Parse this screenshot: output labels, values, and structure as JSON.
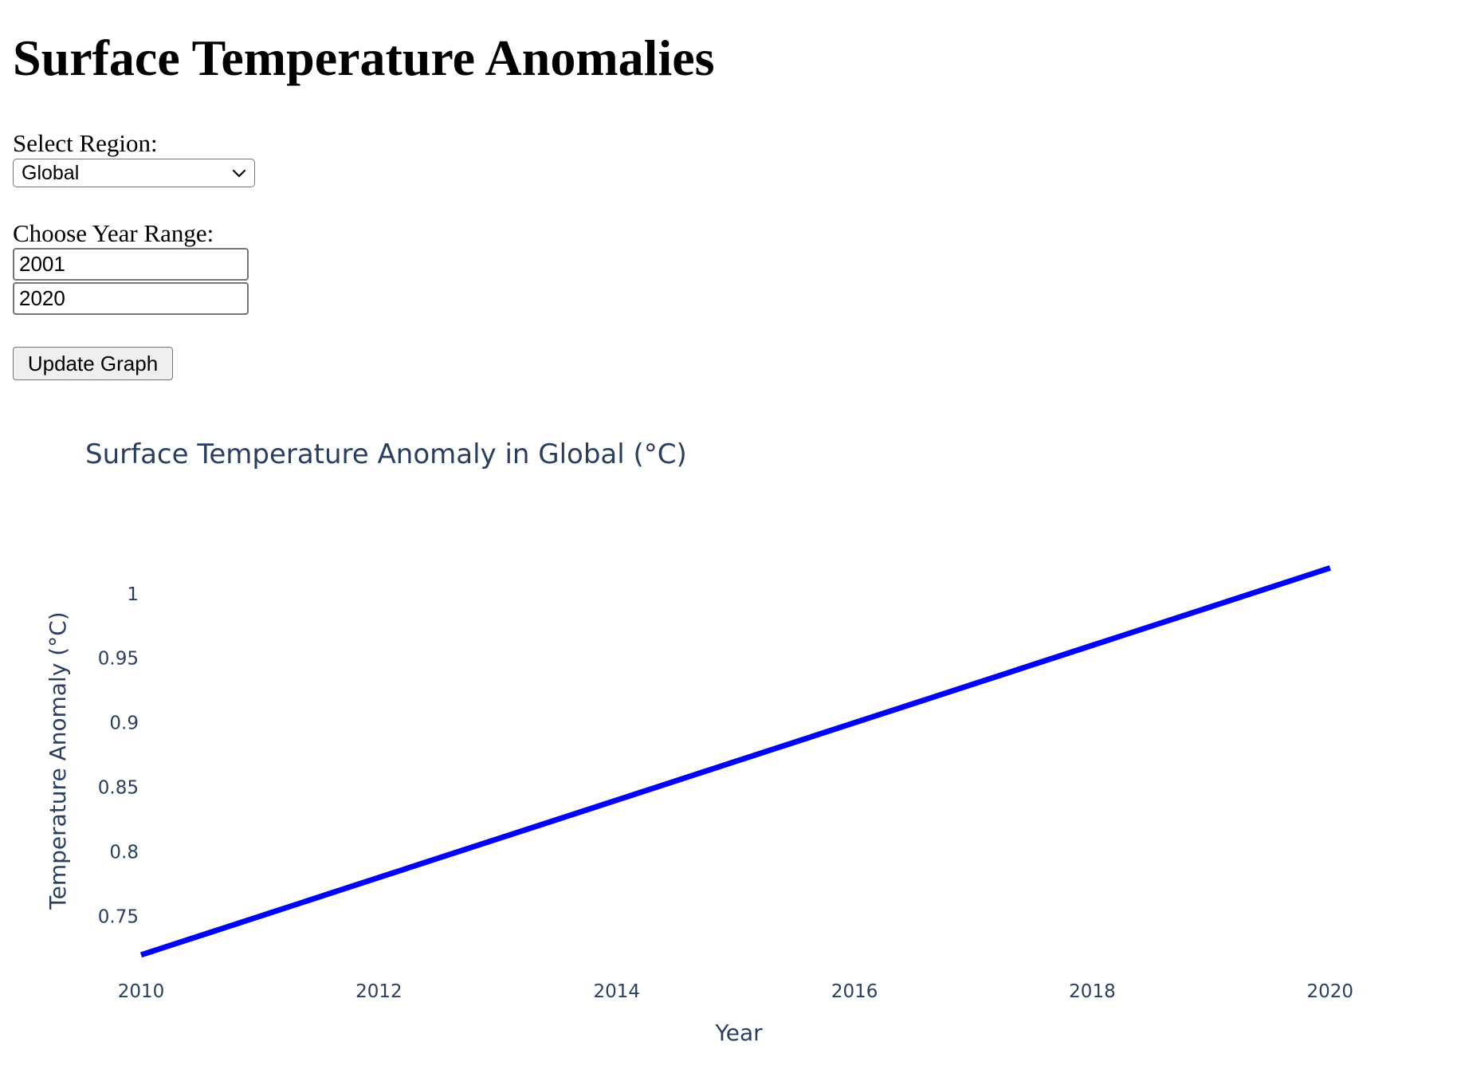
{
  "page": {
    "title": "Surface Temperature Anomalies"
  },
  "controls": {
    "region_label": "Select Region:",
    "region_selected": "Global",
    "year_range_label": "Choose Year Range:",
    "year_start": "2001",
    "year_end": "2020",
    "update_button_label": "Update Graph",
    "chevron_icon": "chevron-down-icon"
  },
  "chart_data": {
    "type": "line",
    "title": "Surface Temperature Anomaly in Global (°C)",
    "xlabel": "Year",
    "ylabel": "Temperature Anomaly (°C)",
    "x": [
      2010,
      2011,
      2012,
      2013,
      2014,
      2015,
      2016,
      2017,
      2018,
      2019,
      2020
    ],
    "series": [
      {
        "values": [
          0.72,
          0.75,
          0.78,
          0.81,
          0.84,
          0.87,
          0.9,
          0.93,
          0.96,
          0.99,
          1.02
        ],
        "color": "#0000ff"
      }
    ],
    "xlim": [
      2010,
      2021
    ],
    "ylim": [
      0.71,
      1.045
    ],
    "x_ticks": [
      2010,
      2012,
      2014,
      2016,
      2018,
      2020
    ],
    "x_tick_labels": [
      "2010",
      "2012",
      "2014",
      "2016",
      "2018",
      "2020"
    ],
    "y_ticks": [
      0.75,
      0.8,
      0.85,
      0.9,
      0.95,
      1
    ],
    "y_tick_labels": [
      "0.75",
      "0.8",
      "0.85",
      "0.9",
      "0.95",
      "1"
    ],
    "grid": false,
    "legend": false
  }
}
